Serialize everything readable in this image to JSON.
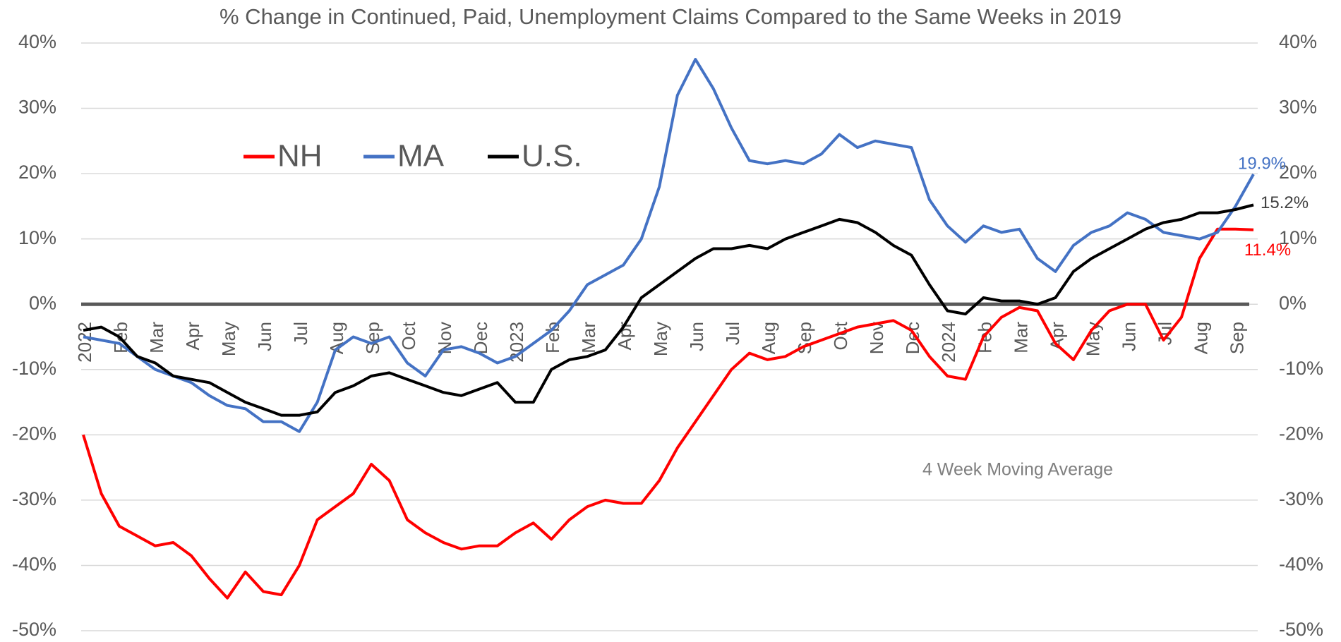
{
  "chart_data": {
    "type": "line",
    "title": "% Change in Continued, Paid,  Unemployment Claims Compared to the Same Weeks in 2019",
    "annotation": "4 Week Moving Average",
    "categories": [
      "2022",
      null,
      "Feb",
      null,
      "Mar",
      null,
      "Apr",
      null,
      "May",
      null,
      "Jun",
      null,
      "Jul",
      null,
      "Aug",
      null,
      "Sep",
      null,
      "Oct",
      null,
      "Nov",
      null,
      "Dec",
      null,
      "2023",
      null,
      "Feb",
      null,
      "Mar",
      null,
      "Apr",
      null,
      "May",
      null,
      "Jun",
      null,
      "Jul",
      null,
      "Aug",
      null,
      "Sep",
      null,
      "Oct",
      null,
      "Nov",
      null,
      "Dec",
      null,
      "2024",
      null,
      "Feb",
      null,
      "Mar",
      null,
      "Apr",
      null,
      "May",
      null,
      "Jun",
      null,
      "Jul",
      null,
      "Aug",
      null,
      "Sep",
      null
    ],
    "series": [
      {
        "name": "NH",
        "color": "#ff0000",
        "values": [
          -20,
          -29,
          -34,
          -35.5,
          -37,
          -36.5,
          -38.5,
          -42,
          -45,
          -41,
          -44,
          -44.5,
          -40,
          -33,
          -31,
          -29,
          -24.5,
          -27,
          -33,
          -35,
          -36.5,
          -37.5,
          -37,
          -37,
          -35,
          -33.5,
          -36,
          -33,
          -31,
          -30,
          -30.5,
          -30.5,
          -27,
          -22,
          -18,
          -14,
          -10,
          -7.5,
          -8.5,
          -8,
          -6.5,
          -5.5,
          -4.5,
          -3.5,
          -3,
          -2.5,
          -4,
          -8,
          -11,
          -11.5,
          -5,
          -2,
          -0.5,
          -1,
          -6,
          -8.5,
          -4,
          -1,
          0,
          0,
          -5.5,
          -2,
          7,
          11.5,
          11.5,
          11.4
        ],
        "value_labels": [
          null,
          null,
          null,
          null,
          null,
          null,
          null,
          null,
          null,
          null,
          null,
          null,
          null,
          null,
          null,
          null,
          null,
          null,
          null,
          null,
          null,
          null,
          null,
          null,
          null,
          null,
          null,
          null,
          null,
          null,
          null,
          null,
          null,
          null,
          null,
          null,
          null,
          null,
          null,
          null,
          null,
          null,
          null,
          null,
          null,
          null,
          null,
          null,
          null,
          null,
          null,
          null,
          null,
          null,
          null,
          null,
          null,
          null,
          null,
          null,
          null,
          null,
          null,
          null,
          null,
          "11.4%"
        ]
      },
      {
        "name": "MA",
        "color": "#4472c4",
        "values": [
          -5,
          -5.5,
          -6,
          -8,
          -10,
          -11,
          -12,
          -14,
          -15.5,
          -16,
          -18,
          -18,
          -19.5,
          -15,
          -7,
          -5,
          -6,
          -5,
          -9,
          -11,
          -7,
          -6.5,
          -7.5,
          -9,
          -8,
          -6,
          -4,
          -1,
          3,
          4.5,
          6,
          10,
          18,
          32,
          37.5,
          33,
          27,
          22,
          21.5,
          22,
          21.5,
          23,
          26,
          24,
          25,
          24.5,
          24,
          16,
          12,
          9.5,
          12,
          11,
          11.5,
          7,
          5,
          9,
          11,
          12,
          14,
          13,
          11,
          10.5,
          10,
          11,
          15,
          19.9
        ],
        "value_labels": [
          null,
          null,
          null,
          null,
          null,
          null,
          null,
          null,
          null,
          null,
          null,
          null,
          null,
          null,
          null,
          null,
          null,
          null,
          null,
          null,
          null,
          null,
          null,
          null,
          null,
          null,
          null,
          null,
          null,
          null,
          null,
          null,
          null,
          null,
          null,
          null,
          null,
          null,
          null,
          null,
          null,
          null,
          null,
          null,
          null,
          null,
          null,
          null,
          null,
          null,
          null,
          null,
          null,
          null,
          null,
          null,
          null,
          null,
          null,
          null,
          null,
          null,
          null,
          null,
          null,
          "19.9%"
        ]
      },
      {
        "name": "U.S.",
        "color": "#000000",
        "values": [
          -4,
          -3.5,
          -5,
          -8,
          -9,
          -11,
          -11.5,
          -12,
          -13.5,
          -15,
          -16,
          -17,
          -17,
          -16.5,
          -13.5,
          -12.5,
          -11,
          -10.5,
          -11.5,
          -12.5,
          -13.5,
          -14,
          -13,
          -12,
          -15,
          -15,
          -10,
          -8.5,
          -8,
          -7,
          -3.5,
          1,
          3,
          5,
          7,
          8.5,
          8.5,
          9,
          8.5,
          10,
          11,
          12,
          13,
          12.5,
          11,
          9,
          7.5,
          3,
          -1,
          -1.5,
          1,
          0.5,
          0.5,
          0,
          1,
          5,
          7,
          8.5,
          10,
          11.5,
          12.5,
          13,
          14,
          14,
          14.5,
          15.2
        ],
        "value_labels": [
          null,
          null,
          null,
          null,
          null,
          null,
          null,
          null,
          null,
          null,
          null,
          null,
          null,
          null,
          null,
          null,
          null,
          null,
          null,
          null,
          null,
          null,
          null,
          null,
          null,
          null,
          null,
          null,
          null,
          null,
          null,
          null,
          null,
          null,
          null,
          null,
          null,
          null,
          null,
          null,
          null,
          null,
          null,
          null,
          null,
          null,
          null,
          null,
          null,
          null,
          null,
          null,
          null,
          null,
          null,
          null,
          null,
          null,
          null,
          null,
          null,
          null,
          null,
          null,
          null,
          "15.2%"
        ]
      }
    ],
    "ylim": [
      -50,
      40
    ],
    "yticks": [
      {
        "value": -50,
        "label": "-50%"
      },
      {
        "value": -40,
        "label": "-40%"
      },
      {
        "value": -30,
        "label": "-30%"
      },
      {
        "value": -20,
        "label": "-20%"
      },
      {
        "value": -10,
        "label": "-10%"
      },
      {
        "value": 0,
        "label": "0%"
      },
      {
        "value": 10,
        "label": "10%"
      },
      {
        "value": 20,
        "label": "20%"
      },
      {
        "value": 30,
        "label": "30%"
      },
      {
        "value": 40,
        "label": "40%"
      }
    ],
    "y2lim": [
      -50,
      40
    ],
    "y2ticks": [
      {
        "value": -50,
        "label": "-50%"
      },
      {
        "value": -40,
        "label": "-40%"
      },
      {
        "value": -30,
        "label": "-30%"
      },
      {
        "value": -20,
        "label": "-20%"
      },
      {
        "value": -10,
        "label": "-10%"
      },
      {
        "value": 0,
        "label": "0%"
      },
      {
        "value": 10,
        "label": "10%"
      },
      {
        "value": 20,
        "label": "20%"
      },
      {
        "value": 30,
        "label": "30%"
      },
      {
        "value": 40,
        "label": "40%"
      }
    ],
    "grid": true,
    "legend": "top-left"
  }
}
